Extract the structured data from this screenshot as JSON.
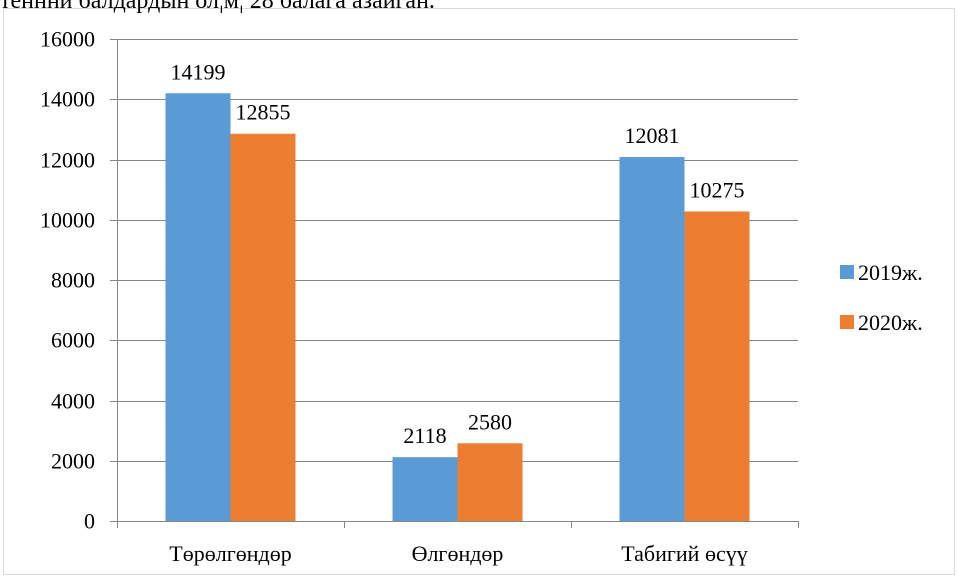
{
  "header": {
    "text": "теннни балдардын ол¦м¦ 28 балага азайган."
  },
  "chart_data": {
    "type": "bar",
    "title": "",
    "xlabel": "",
    "ylabel": "",
    "categories": [
      "Төрөлгөндөр",
      "Өлгөндөр",
      "Табигий өсүү"
    ],
    "series": [
      {
        "name": "2019ж.",
        "color": "#5B9BD5",
        "values": [
          14199,
          2118,
          12081
        ]
      },
      {
        "name": "2020ж.",
        "color": "#ED7D31",
        "values": [
          12855,
          2580,
          10275
        ]
      }
    ],
    "ylim": [
      0,
      16000
    ],
    "yticks": [
      0,
      2000,
      4000,
      6000,
      8000,
      10000,
      12000,
      14000,
      16000
    ],
    "grid": true,
    "legend_position": "right"
  }
}
